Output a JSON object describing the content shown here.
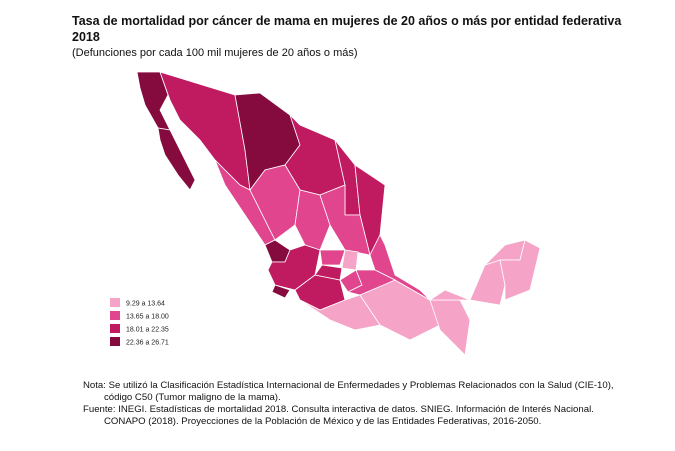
{
  "header": {
    "title_line1": "Tasa de mortalidad por cáncer de mama en mujeres de 20 años o más por entidad federativa",
    "title_line2": "2018",
    "subtitle": "(Defunciones por cada 100 mil mujeres de 20 años o más)"
  },
  "legend": {
    "items": [
      {
        "label": "9.29 a 13.64",
        "color": "#f5a3c7"
      },
      {
        "label": "13.65 a 18.00",
        "color": "#e0458e"
      },
      {
        "label": "18.01 a 22.35",
        "color": "#c01a60"
      },
      {
        "label": "22.36 a 26.71",
        "color": "#850a3e"
      }
    ]
  },
  "notes": {
    "lines": [
      "Nota: Se utilizó la Clasificación Estadística Internacional de Enfermedades y Problemas Relacionados con la Salud (CIE-10),",
      "código C50 (Tumor maligno de la mama).",
      "Fuente: INEGI. Estadísticas de mortalidad 2018. Consulta interactiva de datos. SNIEG. Información de Interés Nacional.",
      "CONAPO (2018). Proyecciones de la Población de México y de las Entidades Federativas, 2016-2050."
    ]
  }
}
